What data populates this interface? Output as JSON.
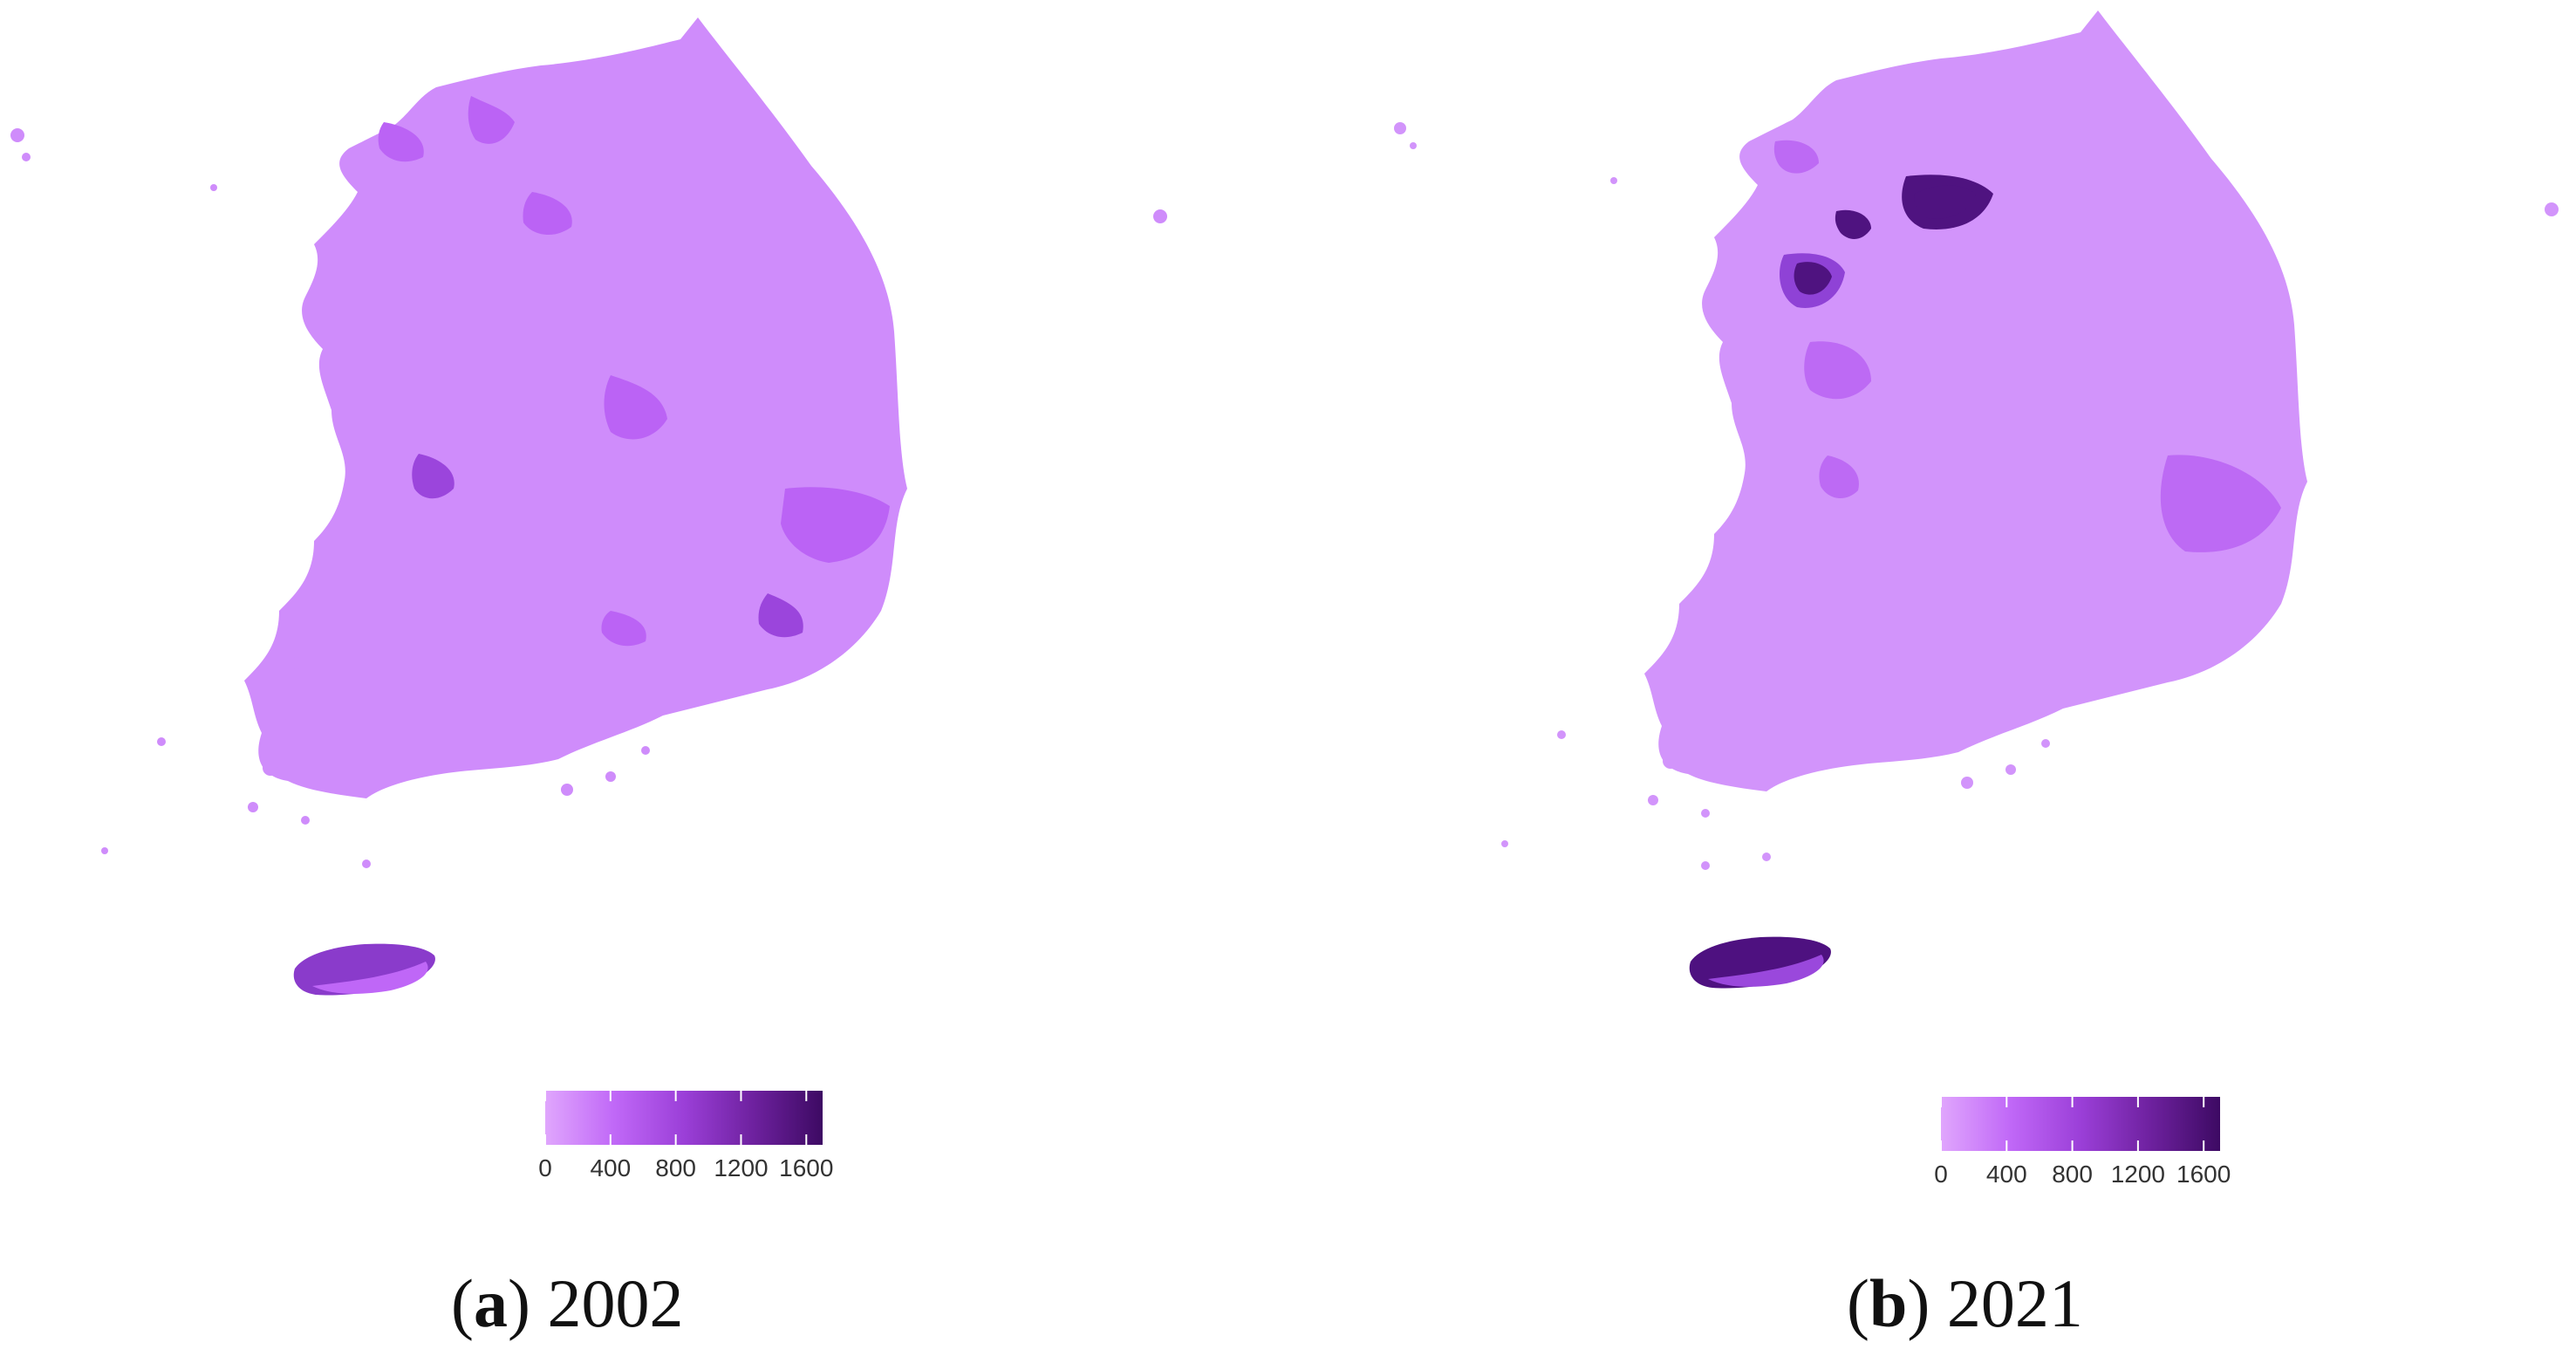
{
  "panels": [
    {
      "id": "a",
      "caption_letter": "a",
      "caption_year": "2002",
      "legend_ticks": [
        "0",
        "400",
        "800",
        "1200",
        "1600"
      ],
      "fill_colors": {
        "base": "#cf8cfb",
        "mid": "#bb63f5",
        "dark": "#9b45dc",
        "darkest": "#7a2cb8"
      },
      "island_colors": {
        "north": "#8a3bcb",
        "south": "#bf67f7"
      }
    },
    {
      "id": "b",
      "caption_letter": "b",
      "caption_year": "2021",
      "legend_ticks": [
        "0",
        "400",
        "800",
        "1200",
        "1600"
      ],
      "fill_colors": {
        "base": "#d294fb",
        "mid": "#bd6af4",
        "dark": "#8f42d6",
        "darkest": "#4f1380"
      },
      "island_colors": {
        "north": "#4e1180",
        "south": "#9a48dc"
      }
    }
  ],
  "legend_gradient": [
    "#e0a6fd",
    "#c068f7",
    "#9b3fd8",
    "#6e219f",
    "#3d0a63"
  ],
  "legend_range": [
    0,
    1700
  ]
}
